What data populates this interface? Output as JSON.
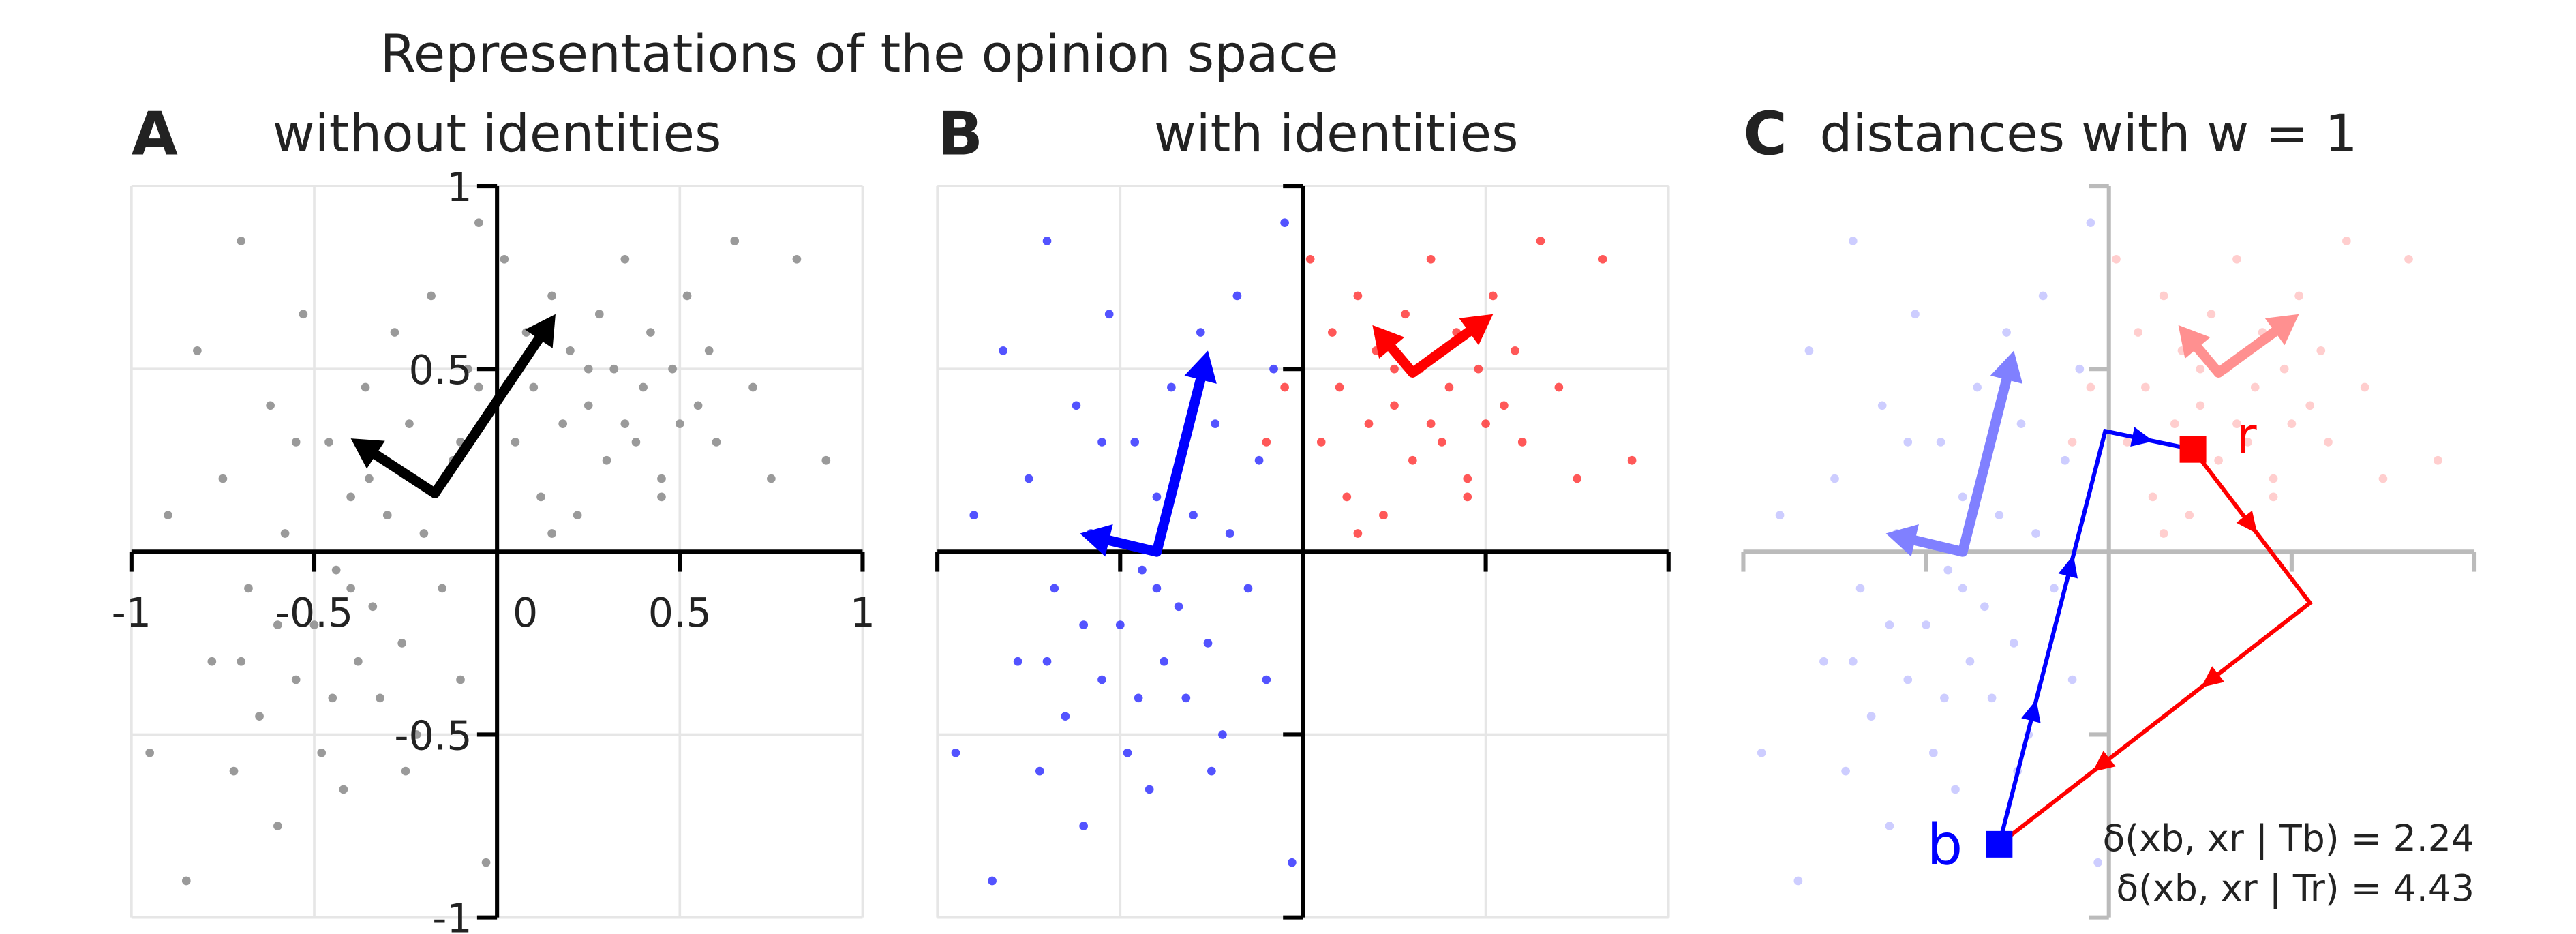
{
  "title": "Representations of the opinion space",
  "chart_data": [
    {
      "type": "scatter",
      "panel": "A",
      "title": "without identities",
      "color": "#9a9a9a",
      "alpha": 1,
      "xlim": [
        -1,
        1
      ],
      "ylim": [
        -1,
        1
      ],
      "xticks": [
        -1,
        -0.5,
        0,
        0.5,
        1
      ],
      "yticks": [
        -1,
        -0.5,
        0.5,
        1
      ],
      "grid": true,
      "tick_labels": true,
      "axis_color": "#000000",
      "arrows": [
        {
          "color": "#000000",
          "x0": -0.17,
          "y0": 0.16,
          "x1": 0.16,
          "y1": 0.65
        },
        {
          "color": "#000000",
          "x0": -0.17,
          "y0": 0.16,
          "x1": -0.4,
          "y1": 0.31
        }
      ]
    },
    {
      "type": "scatter",
      "panel": "B",
      "title": "with identities",
      "alpha": 0.75,
      "xlim": [
        -1,
        1
      ],
      "ylim": [
        -1,
        1
      ],
      "xticks": [
        -1,
        -0.5,
        0,
        0.5,
        1
      ],
      "yticks": [
        -1,
        -0.5,
        0.5,
        1
      ],
      "grid": true,
      "tick_labels": false,
      "axis_color": "#000000",
      "series": [
        {
          "color": "#1a1aff",
          "x": [
            -0.95,
            -0.9,
            -0.85,
            -0.82,
            -0.78,
            -0.75,
            -0.72,
            -0.7,
            -0.68,
            -0.65,
            -0.62,
            -0.6,
            -0.58,
            -0.55,
            -0.53,
            -0.5,
            -0.48,
            -0.46,
            -0.44,
            -0.42,
            -0.4,
            -0.38,
            -0.36,
            -0.34,
            -0.32,
            -0.3,
            -0.28,
            -0.26,
            -0.24,
            -0.22,
            -0.2,
            -0.18,
            -0.15,
            -0.12,
            -0.1,
            -0.08,
            -0.05,
            -0.03,
            -0.6,
            -0.45,
            -0.35,
            -0.25,
            -0.55,
            -0.7,
            -0.4
          ],
          "y": [
            -0.55,
            0.1,
            -0.9,
            0.55,
            -0.3,
            0.2,
            -0.6,
            0.85,
            -0.1,
            -0.45,
            0.4,
            -0.75,
            0.05,
            -0.35,
            0.65,
            -0.2,
            -0.55,
            0.3,
            -0.05,
            -0.65,
            0.15,
            -0.3,
            0.45,
            -0.15,
            -0.4,
            0.1,
            0.6,
            -0.25,
            0.35,
            -0.5,
            0.05,
            0.7,
            -0.1,
            0.25,
            -0.35,
            0.5,
            0.9,
            -0.85,
            -0.2,
            -0.4,
            0.2,
            -0.6,
            0.3,
            -0.3,
            -0.1
          ]
        },
        {
          "color": "#ff2020",
          "x": [
            0.02,
            0.05,
            0.08,
            0.1,
            0.12,
            0.15,
            0.18,
            0.2,
            0.22,
            0.25,
            0.28,
            0.3,
            0.32,
            0.35,
            0.38,
            0.4,
            0.42,
            0.45,
            0.48,
            0.5,
            0.52,
            0.55,
            0.58,
            0.6,
            0.65,
            0.7,
            0.75,
            0.82,
            0.9,
            0.15,
            0.25,
            0.35,
            0.45,
            -0.05,
            -0.1
          ],
          "y": [
            0.8,
            0.3,
            0.6,
            0.45,
            0.15,
            0.7,
            0.35,
            0.55,
            0.1,
            0.4,
            0.65,
            0.25,
            0.5,
            0.8,
            0.3,
            0.45,
            0.6,
            0.2,
            0.5,
            0.35,
            0.7,
            0.4,
            0.55,
            0.3,
            0.85,
            0.45,
            0.2,
            0.8,
            0.25,
            0.05,
            0.5,
            0.35,
            0.15,
            0.45,
            0.3
          ]
        }
      ],
      "arrows": [
        {
          "color": "#0000ff",
          "x0": -0.4,
          "y0": 0,
          "x1": -0.26,
          "y1": 0.55
        },
        {
          "color": "#0000ff",
          "x0": -0.4,
          "y0": 0,
          "x1": -0.61,
          "y1": 0.05
        },
        {
          "color": "#ff0000",
          "x0": 0.3,
          "y0": 0.49,
          "x1": 0.52,
          "y1": 0.65
        },
        {
          "color": "#ff0000",
          "x0": 0.3,
          "y0": 0.49,
          "x1": 0.19,
          "y1": 0.62
        }
      ]
    },
    {
      "type": "scatter",
      "panel": "C",
      "title": "distances with w = 1",
      "alpha": 0.22,
      "xlim": [
        -1,
        1
      ],
      "ylim": [
        -1,
        1
      ],
      "xticks": [
        -1,
        -0.5,
        0,
        0.5,
        1
      ],
      "yticks": [
        -1,
        -0.5,
        0.5,
        1
      ],
      "grid": false,
      "tick_labels": false,
      "axis_color": "#bbbbbb",
      "arrows": [
        {
          "color": "#8080ff",
          "x0": -0.4,
          "y0": 0,
          "x1": -0.26,
          "y1": 0.55
        },
        {
          "color": "#8080ff",
          "x0": -0.4,
          "y0": 0,
          "x1": -0.61,
          "y1": 0.05
        },
        {
          "color": "#ff9090",
          "x0": 0.3,
          "y0": 0.49,
          "x1": 0.52,
          "y1": 0.65
        },
        {
          "color": "#ff9090",
          "x0": 0.3,
          "y0": 0.49,
          "x1": 0.19,
          "y1": 0.62
        }
      ],
      "paths": [
        {
          "color": "#0000ff",
          "x": [
            -0.3,
            -0.01,
            0.23
          ],
          "y": [
            -0.8,
            0.33,
            0.28
          ]
        },
        {
          "color": "#ff0000",
          "x": [
            0.23,
            0.55,
            -0.3
          ],
          "y": [
            0.28,
            -0.14,
            -0.8
          ]
        }
      ],
      "markers": [
        {
          "label": "b",
          "color": "#0000ff",
          "x": -0.3,
          "y": -0.8
        },
        {
          "label": "r",
          "color": "#ff0000",
          "x": 0.23,
          "y": 0.28
        }
      ],
      "annotations": [
        "δ(xb, xr | Tb) = 2.24",
        "δ(xb, xr | Tr) = 4.43"
      ]
    }
  ]
}
